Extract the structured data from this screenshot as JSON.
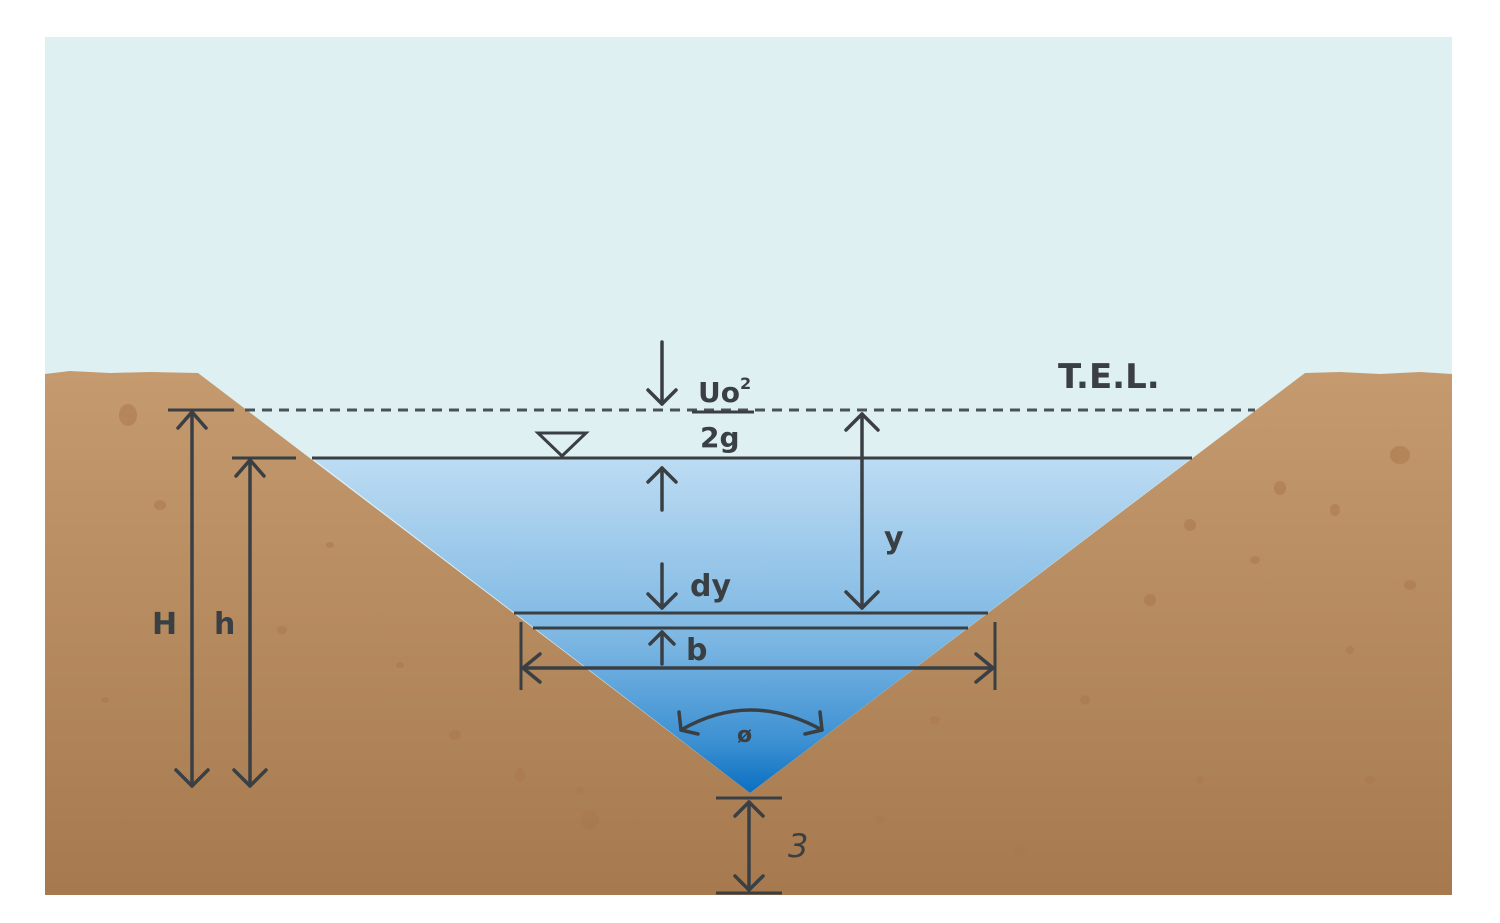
{
  "labels": {
    "tel": "T.E.L.",
    "velocity_head_numerator": "Uo",
    "velocity_head_exponent": "2",
    "velocity_head_denominator": "2g",
    "y": "y",
    "dy": "dy",
    "b": "b",
    "H": "H",
    "h": "h",
    "angle": "ø",
    "bed_depth": "3"
  },
  "colors": {
    "sky": "#dff0f2",
    "soil_top": "#c2966a",
    "soil_bottom": "#a77a4d",
    "water_top": "#bcdcf2",
    "water_bottom": "#0c74c4",
    "lines": "#3a3f44"
  }
}
